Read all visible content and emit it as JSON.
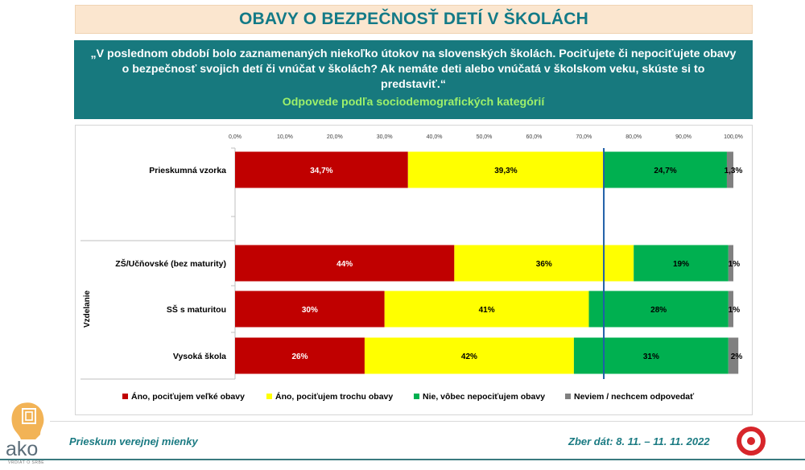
{
  "header": {
    "title": "OBAVY O BEZPEČNOSŤ DETÍ V ŠKOLÁCH"
  },
  "question": {
    "text": "„V poslednom období  bolo zaznamenaných niekoľko útokov na slovenských školách. Pociťujete či nepociťujete obavy o bezpečnosť svojich detí  či vnúčat v školách?  Ak nemáte deti alebo vnúčatá v školskom veku, skúste si to predstaviť.“",
    "subtitle": "Odpovede podľa sociodemografických kategórií"
  },
  "footer": {
    "left": "Prieskum verejnej mienky",
    "right": "Zber dát: 8. 11. – 11. 11. 2022",
    "logo_text": "ako",
    "logo_tagline": "VRDIAŤ O SRBE"
  },
  "chart_data": {
    "type": "bar",
    "orientation": "horizontal",
    "stacked": true,
    "xlim": [
      0,
      100
    ],
    "x_ticks": [
      "0,0%",
      "10,0%",
      "20,0%",
      "30,0%",
      "40,0%",
      "50,0%",
      "60,0%",
      "70,0%",
      "80,0%",
      "90,0%",
      "100,0%"
    ],
    "group_label": "Vzdelanie",
    "categories": [
      "Prieskumná vzorka",
      "ZŠ/Učňovské (bez maturity)",
      "SŠ s maturitou",
      "Vysoká škola"
    ],
    "series": [
      {
        "name": "Áno, pociťujem veľké obavy",
        "color": "#c00000",
        "label_color": "#ffffff",
        "values": [
          34.7,
          44,
          30,
          26
        ],
        "labels": [
          "34,7%",
          "44%",
          "30%",
          "26%"
        ]
      },
      {
        "name": "Áno, pociťujem trochu obavy",
        "color": "#ffff00",
        "label_color": "#000000",
        "values": [
          39.3,
          36,
          41,
          42
        ],
        "labels": [
          "39,3%",
          "36%",
          "41%",
          "42%"
        ]
      },
      {
        "name": "Nie, vôbec nepociťujem obavy",
        "color": "#00b050",
        "label_color": "#000000",
        "values": [
          24.7,
          19,
          28,
          31
        ],
        "labels": [
          "24,7%",
          "19%",
          "28%",
          "31%"
        ]
      },
      {
        "name": "Neviem / nechcem odpovedať",
        "color": "#808080",
        "label_color": "#000000",
        "values": [
          1.3,
          1,
          1,
          2
        ],
        "labels": [
          "1,3%",
          "1%",
          "1%",
          "2%"
        ]
      }
    ],
    "reference_line": {
      "value": 74,
      "color": "#1f5fa8"
    }
  }
}
